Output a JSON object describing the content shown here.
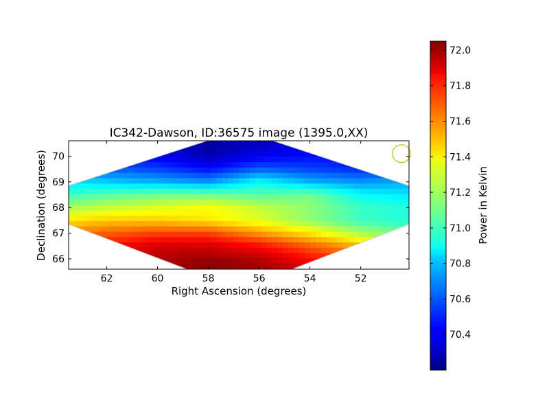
{
  "chart_data": {
    "type": "heatmap",
    "title": "IC342-Dawson, ID:36575 image (1395.0,XX)",
    "xlabel": "Right Ascension (degrees)",
    "ylabel": "Declination (degrees)",
    "xlim": [
      63.5,
      50.1
    ],
    "ylim": [
      65.6,
      70.6
    ],
    "x_ticks": [
      "62",
      "60",
      "58",
      "56",
      "54",
      "52"
    ],
    "x_tick_values": [
      62,
      60,
      58,
      56,
      54,
      52
    ],
    "y_ticks": [
      "66",
      "67",
      "68",
      "69",
      "70"
    ],
    "y_tick_values": [
      66,
      67,
      68,
      69,
      70
    ],
    "colorbar": {
      "label": "Power in Kelvin",
      "range": [
        70.2,
        72.05
      ],
      "ticks": [
        "70.4",
        "70.6",
        "70.8",
        "71.0",
        "71.2",
        "71.4",
        "71.6",
        "71.8",
        "72.0"
      ],
      "tick_values": [
        70.4,
        70.6,
        70.8,
        71.0,
        71.2,
        71.4,
        71.6,
        71.8,
        72.0
      ],
      "colormap": "jet"
    },
    "grid": false,
    "footprint_corners_radec": [
      [
        63.5,
        68.85
      ],
      [
        58.05,
        70.6
      ],
      [
        55.45,
        70.6
      ],
      [
        50.1,
        68.85
      ],
      [
        50.1,
        67.35
      ],
      [
        54.7,
        65.6
      ],
      [
        58.85,
        65.6
      ],
      [
        63.5,
        67.35
      ]
    ],
    "beam_marker": {
      "ra": 50.4,
      "dec": 70.1,
      "color": "#bfbf00"
    },
    "value_field": {
      "description_rows_dec_ascending": "power in Kelvin sampled on RA/Dec grid",
      "ra": [
        63.5,
        62.0,
        60.0,
        58.0,
        56.0,
        54.0,
        52.0,
        50.1
      ],
      "dec": [
        65.6,
        66.0,
        66.5,
        67.0,
        67.5,
        68.0,
        68.5,
        69.0,
        69.5,
        70.0,
        70.6
      ],
      "values": [
        [
          72.0,
          72.0,
          72.0,
          72.05,
          72.0,
          71.9,
          71.8,
          71.7
        ],
        [
          71.85,
          71.9,
          71.95,
          72.0,
          71.95,
          71.8,
          71.7,
          71.55
        ],
        [
          71.75,
          71.8,
          71.9,
          71.9,
          71.8,
          71.65,
          71.5,
          71.35
        ],
        [
          71.6,
          71.65,
          71.7,
          71.7,
          71.55,
          71.4,
          71.2,
          71.1
        ],
        [
          71.4,
          71.45,
          71.45,
          71.4,
          71.3,
          71.15,
          71.0,
          70.95
        ],
        [
          71.2,
          71.25,
          71.3,
          71.35,
          71.25,
          71.15,
          71.0,
          70.95
        ],
        [
          71.0,
          71.05,
          71.1,
          71.1,
          71.05,
          71.1,
          70.9,
          70.85
        ],
        [
          70.85,
          70.8,
          70.75,
          70.7,
          70.9,
          70.75,
          70.7,
          70.75
        ],
        [
          70.7,
          70.6,
          70.55,
          70.45,
          70.6,
          70.55,
          70.5,
          70.55
        ],
        [
          70.6,
          70.5,
          70.4,
          70.3,
          70.4,
          70.45,
          70.45,
          70.5
        ],
        [
          70.55,
          70.45,
          70.35,
          70.25,
          70.3,
          70.4,
          70.45,
          70.5
        ]
      ]
    }
  }
}
